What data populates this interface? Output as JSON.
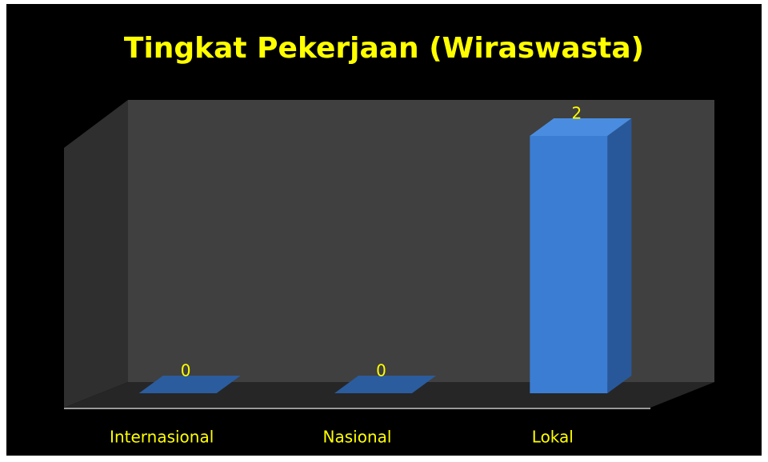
{
  "chart_data": {
    "type": "bar",
    "title": "Tingkat Pekerjaan (Wiraswasta)",
    "categories": [
      "Internasional",
      "Nasional",
      "Lokal"
    ],
    "values": [
      0,
      0,
      2
    ],
    "color": "#3b7dd3",
    "label_color": "#ffff00",
    "grid": false
  }
}
